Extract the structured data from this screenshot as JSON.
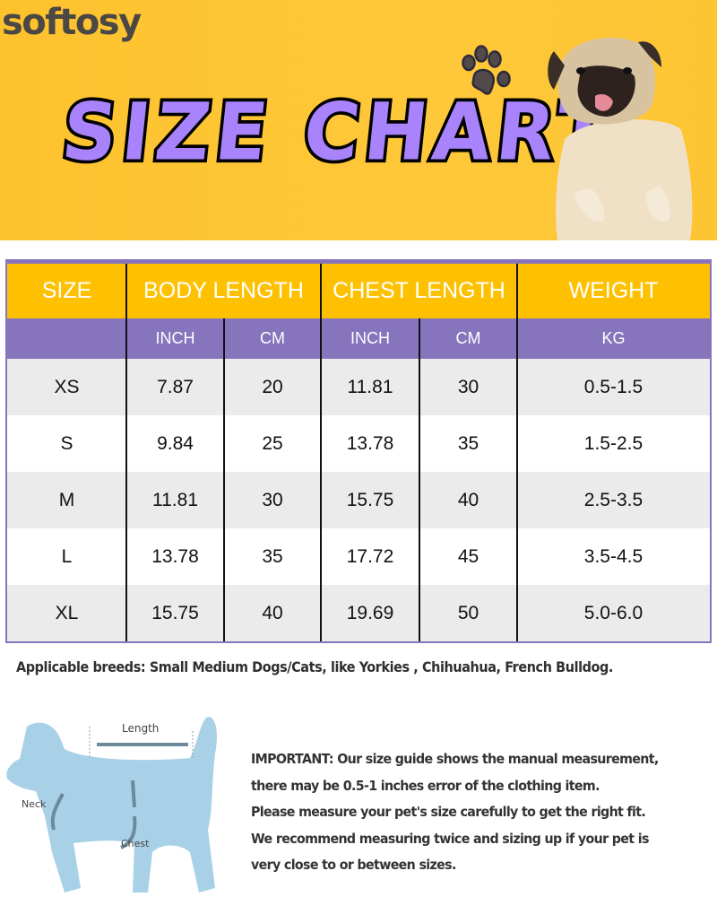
{
  "brand": {
    "logo_text": "softosy"
  },
  "banner": {
    "title": "SIZE CHART",
    "paw_icon": "paw-print-icon",
    "photo": "pug-photo"
  },
  "colors": {
    "banner_bg": "#fec22d",
    "header_yellow": "#fec101",
    "header_purple": "#8675bd",
    "title_purple": "#a883fb",
    "row_gray": "#ebebeb",
    "row_white": "#ffffff"
  },
  "table": {
    "headers": [
      "SIZE",
      "BODY LENGTH",
      "CHEST LENGTH",
      "WEIGHT"
    ],
    "subheaders": [
      "",
      "INCH",
      "CM",
      "INCH",
      "CM",
      "KG"
    ],
    "rows": [
      [
        "XS",
        "7.87",
        "20",
        "11.81",
        "30",
        "0.5-1.5"
      ],
      [
        "S",
        "9.84",
        "25",
        "13.78",
        "35",
        "1.5-2.5"
      ],
      [
        "M",
        "11.81",
        "30",
        "15.75",
        "40",
        "2.5-3.5"
      ],
      [
        "L",
        "13.78",
        "35",
        "17.72",
        "45",
        "3.5-4.5"
      ],
      [
        "XL",
        "15.75",
        "40",
        "19.69",
        "50",
        "5.0-6.0"
      ]
    ]
  },
  "breeds_note": "Applicable breeds: Small Medium Dogs/Cats, like Yorkies , Chihuahua, French Bulldog.",
  "diagram": {
    "length_label": "Length",
    "neck_label": "Neck",
    "chest_label": "Chest"
  },
  "important_lines": [
    "IMPORTANT: Our size guide shows the manual measurement,",
    "there may be 0.5-1 inches error of the clothing item.",
    "Please measure your pet's size carefully to get the right fit.",
    "We recommend measuring twice and sizing up if your pet is",
    "very close to or between sizes."
  ]
}
